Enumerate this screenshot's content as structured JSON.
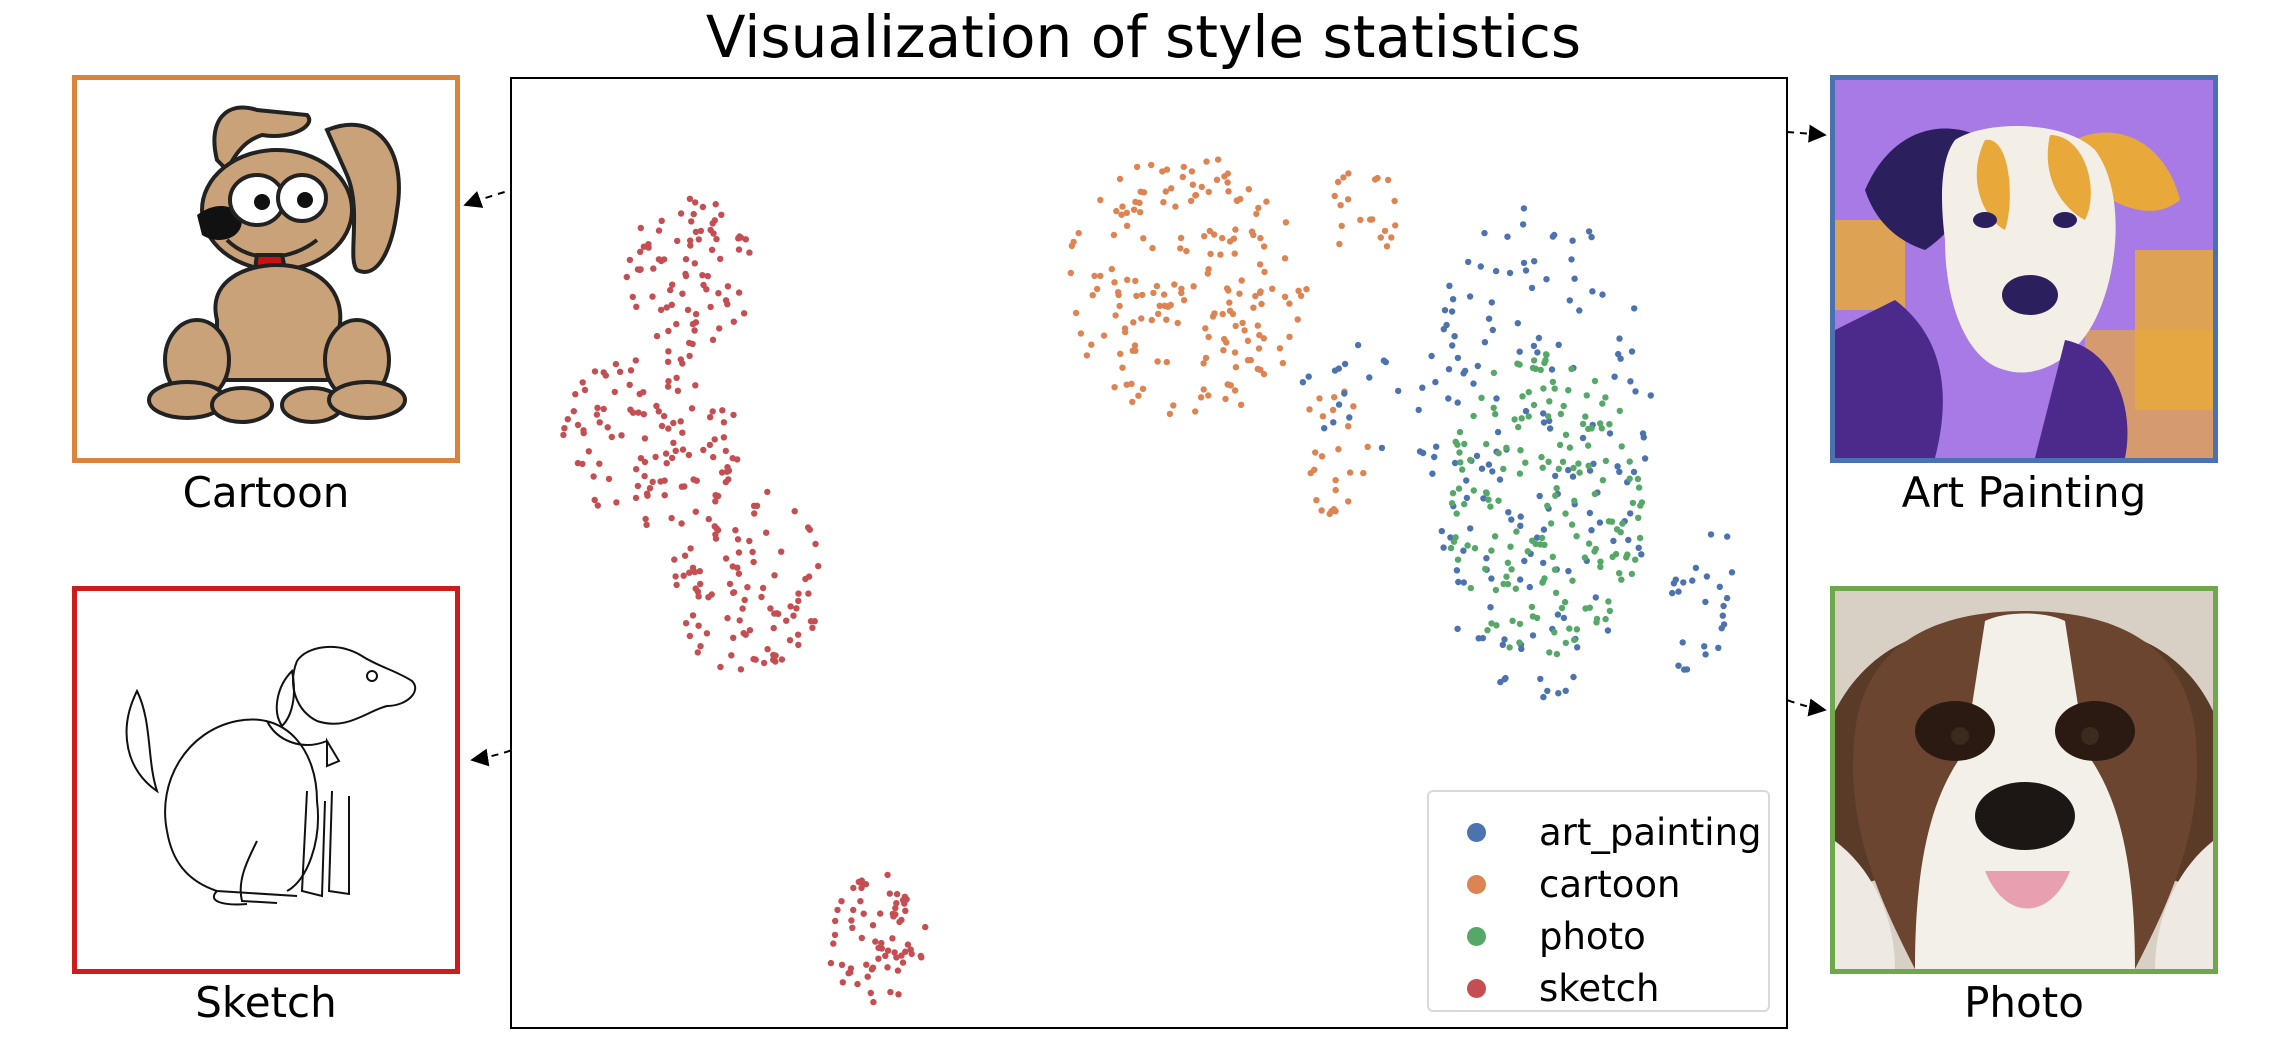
{
  "title": "Visualization of style statistics",
  "panels": {
    "cartoon": {
      "caption": "Cartoon",
      "color": "#d9833d"
    },
    "sketch": {
      "caption": "Sketch",
      "color": "#c81e1e"
    },
    "art_painting": {
      "caption": "Art Painting",
      "color": "#4a72b0"
    },
    "photo": {
      "caption": "Photo",
      "color": "#6fa84a"
    }
  },
  "chart_data": {
    "type": "scatter",
    "title": "Visualization of style statistics",
    "xlabel": "",
    "ylabel": "",
    "xlim": [
      0,
      100
    ],
    "ylim": [
      0,
      100
    ],
    "axes_ticks": "none",
    "grid": false,
    "legend_position": "lower-right",
    "series": [
      {
        "name": "art_painting",
        "color": "#4c72b0",
        "clusters": [
          {
            "cx": 80.5,
            "cy": 60.5,
            "rx": 9.5,
            "ry": 26,
            "n": 170
          },
          {
            "cx": 93.5,
            "cy": 45,
            "rx": 3,
            "ry": 9,
            "n": 25
          },
          {
            "cx": 66,
            "cy": 66,
            "rx": 5,
            "ry": 6,
            "n": 16
          }
        ]
      },
      {
        "name": "cartoon",
        "color": "#dd8452",
        "clusters": [
          {
            "cx": 53,
            "cy": 78,
            "rx": 9.5,
            "ry": 14,
            "n": 185
          },
          {
            "cx": 64,
            "cy": 61,
            "rx": 3.5,
            "ry": 7,
            "n": 25
          },
          {
            "cx": 67,
            "cy": 86,
            "rx": 3,
            "ry": 5,
            "n": 20
          }
        ]
      },
      {
        "name": "photo",
        "color": "#55a868",
        "clusters": [
          {
            "cx": 81,
            "cy": 55,
            "rx": 8,
            "ry": 16,
            "n": 180
          }
        ]
      },
      {
        "name": "sketch",
        "color": "#c44e52",
        "clusters": [
          {
            "cx": 14,
            "cy": 79.5,
            "rx": 5,
            "ry": 8,
            "n": 80
          },
          {
            "cx": 11,
            "cy": 62,
            "rx": 7,
            "ry": 10,
            "n": 110
          },
          {
            "cx": 18.5,
            "cy": 47,
            "rx": 6,
            "ry": 10,
            "n": 100
          },
          {
            "cx": 28.5,
            "cy": 9.5,
            "rx": 4,
            "ry": 7,
            "n": 70
          }
        ]
      }
    ],
    "arrows": [
      {
        "from": "cartoon",
        "to_panel": "cartoon"
      },
      {
        "from": "sketch",
        "to_panel": "sketch"
      },
      {
        "from": "art_painting",
        "to_panel": "art_painting"
      },
      {
        "from": "photo",
        "to_panel": "photo"
      }
    ]
  }
}
